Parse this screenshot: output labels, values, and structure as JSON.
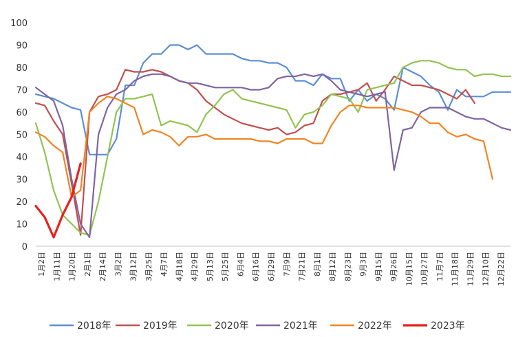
{
  "chart_data": {
    "type": "line",
    "title": "",
    "xlabel": "",
    "ylabel": "",
    "ylim": [
      0,
      100
    ],
    "yticks": [
      0,
      10,
      20,
      30,
      40,
      50,
      60,
      70,
      80,
      90,
      100
    ],
    "grid": false,
    "legend_position": "bottom",
    "x_labels": [
      "1月2日",
      "1月11日",
      "1月20日",
      "2月1日",
      "2月14日",
      "3月2日",
      "3月12日",
      "3月25日",
      "4月7日",
      "4月18日",
      "4月29日",
      "5月13日",
      "5月25日",
      "6月4日",
      "6月16日",
      "6月29日",
      "7月9日",
      "7月21日",
      "8月1日",
      "8月12日",
      "8月23日",
      "9月3日",
      "9月15日",
      "9月26日",
      "10月15日",
      "10月27日",
      "11月7日",
      "11月18日",
      "11月29日",
      "12月10日",
      "12月22日"
    ],
    "series": [
      {
        "name": "2018年",
        "color": "#5b8ed6",
        "values": [
          68,
          67,
          66,
          64,
          62,
          61,
          41,
          41,
          41,
          48,
          72,
          72,
          82,
          86,
          86,
          90,
          90,
          88,
          90,
          86,
          86,
          86,
          86,
          84,
          83,
          83,
          82,
          82,
          80,
          74,
          74,
          72,
          77,
          75,
          75,
          65,
          70,
          65,
          68,
          66,
          61,
          80,
          78,
          76,
          72,
          69,
          61,
          70,
          67,
          67,
          67,
          69,
          69,
          69
        ]
      },
      {
        "name": "2019年",
        "color": "#c0504d",
        "values": [
          64,
          63,
          56,
          50,
          28,
          5,
          60,
          67,
          68,
          70,
          79,
          78,
          78,
          79,
          78,
          76,
          74,
          73,
          70,
          65,
          62,
          59,
          57,
          55,
          54,
          53,
          52,
          53,
          50,
          51,
          54,
          55,
          65,
          68,
          68,
          69,
          70,
          73,
          65,
          70,
          76,
          74,
          72,
          72,
          71,
          70,
          68,
          66,
          70,
          64
        ]
      },
      {
        "name": "2020年",
        "color": "#92c352",
        "values": [
          55,
          42,
          25,
          14,
          10,
          6,
          5,
          20,
          40,
          60,
          66,
          66,
          67,
          68,
          54,
          56,
          55,
          54,
          51,
          59,
          63,
          68,
          70,
          66,
          65,
          64,
          63,
          62,
          61,
          53,
          59,
          60,
          63,
          68,
          67,
          66,
          60,
          70,
          71,
          72,
          73,
          80,
          82,
          83,
          83,
          82,
          80,
          79,
          79,
          76,
          77,
          77,
          76,
          76
        ]
      },
      {
        "name": "2021年",
        "color": "#8064a2",
        "values": [
          71,
          68,
          65,
          54,
          30,
          10,
          4,
          50,
          62,
          68,
          70,
          74,
          76,
          77,
          77,
          76,
          74,
          73,
          73,
          72,
          71,
          71,
          71,
          71,
          70,
          70,
          71,
          75,
          76,
          76,
          77,
          76,
          77,
          74,
          70,
          69,
          68,
          67,
          68,
          69,
          34,
          52,
          53,
          60,
          62,
          62,
          62,
          60,
          58,
          57,
          57,
          55,
          53,
          52
        ]
      },
      {
        "name": "2022年",
        "color": "#f08423",
        "values": [
          51,
          49,
          45,
          42,
          22,
          25,
          60,
          64,
          67,
          66,
          64,
          62,
          50,
          52,
          51,
          49,
          45,
          49,
          49,
          50,
          48,
          48,
          48,
          48,
          48,
          47,
          47,
          46,
          48,
          48,
          48,
          46,
          46,
          54,
          60,
          63,
          63,
          62,
          62,
          62,
          62,
          61,
          60,
          58,
          55,
          55,
          51,
          49,
          50,
          48,
          47,
          30
        ]
      },
      {
        "name": "2023年",
        "color": "#e8201c",
        "values": [
          18,
          13,
          4,
          14,
          22,
          37
        ]
      }
    ]
  }
}
